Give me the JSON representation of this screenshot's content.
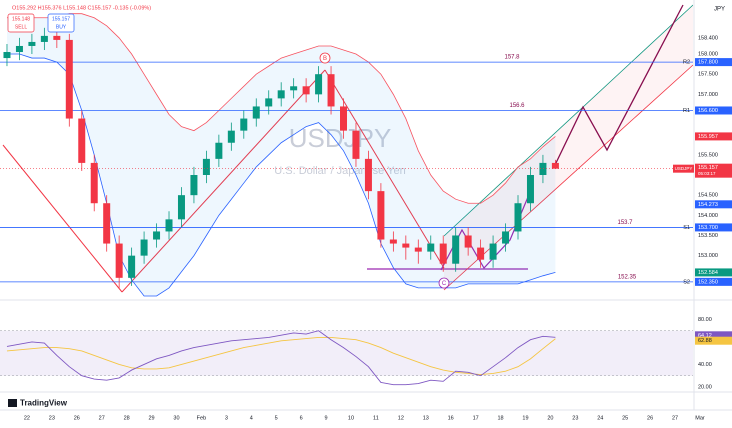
{
  "header": {
    "ohlc": "O155.292 H155.376 L155.148 C155.157 -0.135 (-0.09%)",
    "sell_price": "155.148",
    "sell": "SELL",
    "buy_price": "155.157",
    "buy": "BUY",
    "currency": "JPY"
  },
  "watermark": {
    "symbol": "USDJPY",
    "description": "U.S. Dollar / Japanese Yen"
  },
  "annotations": {
    "b": "B",
    "c": "C"
  },
  "logo": "TradingView",
  "chart_data": [
    {
      "type": "candlestick",
      "up_color": "#089981",
      "down_color": "#f23645",
      "x": [
        -0.8,
        -0.3,
        0.2,
        0.7,
        1.2,
        1.7,
        2.2,
        2.7,
        3.2,
        3.7,
        4.2,
        4.7,
        5.2,
        5.7,
        6.2,
        6.7,
        7.2,
        7.7,
        8.2,
        8.7,
        9.2,
        9.7,
        10.2,
        10.7,
        11.2,
        11.7,
        12.2,
        12.7,
        13.2,
        13.7,
        14.2,
        14.7,
        15.2,
        15.7,
        16.2,
        16.7,
        17.2,
        17.7,
        18.2,
        18.7,
        19.2,
        19.7,
        20.2,
        20.7,
        21.2
      ],
      "open": [
        157.9,
        158.05,
        158.2,
        158.3,
        158.45,
        158.35,
        156.4,
        155.3,
        154.3,
        153.3,
        152.45,
        153.0,
        153.4,
        153.6,
        153.9,
        154.5,
        155.0,
        155.4,
        155.8,
        156.1,
        156.4,
        156.7,
        156.9,
        157.1,
        157.2,
        157.0,
        157.5,
        156.7,
        156.1,
        155.4,
        154.6,
        153.4,
        153.3,
        153.2,
        153.1,
        153.3,
        152.8,
        153.5,
        153.2,
        152.9,
        153.3,
        153.6,
        154.3,
        155.0,
        155.3
      ],
      "high": [
        158.25,
        158.4,
        158.5,
        158.65,
        158.6,
        158.5,
        156.6,
        155.5,
        154.5,
        153.5,
        153.2,
        153.6,
        153.8,
        154.1,
        154.7,
        155.2,
        155.6,
        156.0,
        156.3,
        156.6,
        156.9,
        157.1,
        157.3,
        157.4,
        157.4,
        157.7,
        157.7,
        156.9,
        156.3,
        155.6,
        154.8,
        153.6,
        153.5,
        153.4,
        153.5,
        153.5,
        153.7,
        153.7,
        153.4,
        153.5,
        153.8,
        154.5,
        155.2,
        155.5,
        155.376
      ],
      "low": [
        157.7,
        157.85,
        158.0,
        158.1,
        158.15,
        156.2,
        155.1,
        154.1,
        153.1,
        152.2,
        152.25,
        152.8,
        153.2,
        153.4,
        153.7,
        154.3,
        154.8,
        155.2,
        155.6,
        155.9,
        156.2,
        156.5,
        156.7,
        156.9,
        156.8,
        156.8,
        156.5,
        155.9,
        155.2,
        154.4,
        153.2,
        153.1,
        152.9,
        152.8,
        152.9,
        152.6,
        152.6,
        153.0,
        152.7,
        152.7,
        153.1,
        153.4,
        154.1,
        154.8,
        155.148
      ],
      "close": [
        158.05,
        158.2,
        158.3,
        158.45,
        158.35,
        156.4,
        155.3,
        154.3,
        153.3,
        152.45,
        153.0,
        153.4,
        153.6,
        153.9,
        154.5,
        155.0,
        155.4,
        155.8,
        156.1,
        156.4,
        156.7,
        156.9,
        157.1,
        157.2,
        157.0,
        157.5,
        156.7,
        156.1,
        155.4,
        154.6,
        153.4,
        153.3,
        153.2,
        153.1,
        153.3,
        152.8,
        153.5,
        153.2,
        152.9,
        153.3,
        153.6,
        154.3,
        155.0,
        155.3,
        155.157
      ],
      "bands": {
        "upper_color": "#f7525f",
        "lower_color": "#2962ff",
        "fill": "#2196f3",
        "upper": [
          158.9,
          158.9,
          158.9,
          158.9,
          158.9,
          159.0,
          159.0,
          158.9,
          158.7,
          158.4,
          158.0,
          157.5,
          157.0,
          156.5,
          156.2,
          156.1,
          156.3,
          156.6,
          156.9,
          157.2,
          157.5,
          157.7,
          157.9,
          158.0,
          158.1,
          158.2,
          158.2,
          158.1,
          158.0,
          157.8,
          157.5,
          157.0,
          156.4,
          155.6,
          155.0,
          154.6,
          154.4,
          154.3,
          154.3,
          154.5,
          154.8,
          155.2,
          155.4,
          155.7,
          155.957
        ],
        "lower": [
          158.0,
          158.0,
          157.9,
          157.9,
          157.8,
          157.5,
          156.6,
          155.5,
          154.3,
          153.0,
          152.4,
          152.0,
          152.0,
          152.2,
          152.6,
          153.0,
          153.5,
          154.0,
          154.4,
          154.8,
          155.2,
          155.5,
          155.8,
          156.0,
          156.2,
          156.3,
          156.0,
          155.6,
          155.0,
          154.3,
          153.3,
          152.7,
          152.3,
          152.2,
          152.2,
          152.2,
          152.2,
          152.3,
          152.3,
          152.3,
          152.3,
          152.3,
          152.4,
          152.5,
          152.584
        ]
      },
      "xlim": [
        -1.08,
        26.72
      ],
      "ylim": [
        151.9,
        159.34
      ],
      "xticks": [
        {
          "value": 0,
          "label": "22"
        },
        {
          "value": 1,
          "label": "23"
        },
        {
          "value": 2,
          "label": "26"
        },
        {
          "value": 3,
          "label": "27"
        },
        {
          "value": 4,
          "label": "28"
        },
        {
          "value": 5,
          "label": "29"
        },
        {
          "value": 6,
          "label": "30"
        },
        {
          "value": 7,
          "label": "Feb"
        },
        {
          "value": 8,
          "label": "3"
        },
        {
          "value": 9,
          "label": "4"
        },
        {
          "value": 10,
          "label": "5"
        },
        {
          "value": 11,
          "label": "6"
        },
        {
          "value": 12,
          "label": "9"
        },
        {
          "value": 13,
          "label": "10"
        },
        {
          "value": 14,
          "label": "11"
        },
        {
          "value": 15,
          "label": "12"
        },
        {
          "value": 16,
          "label": "13"
        },
        {
          "value": 17,
          "label": "16"
        },
        {
          "value": 18,
          "label": "17"
        },
        {
          "value": 19,
          "label": "18"
        },
        {
          "value": 20,
          "label": "19"
        },
        {
          "value": 21,
          "label": "20"
        },
        {
          "value": 22,
          "label": "23"
        },
        {
          "value": 23,
          "label": "24"
        },
        {
          "value": 24,
          "label": "25"
        },
        {
          "value": 25,
          "label": "26"
        },
        {
          "value": 26,
          "label": "27"
        },
        {
          "value": 27,
          "label": "Mar"
        }
      ],
      "yticks": [
        {
          "value": 158.4,
          "label": "158.400"
        },
        {
          "value": 158,
          "label": "158.000"
        },
        {
          "value": 157.5,
          "label": "157.500"
        },
        {
          "value": 157,
          "label": "157.000"
        },
        {
          "value": 155.5,
          "label": "155.500"
        },
        {
          "value": 154.5,
          "label": "154.500"
        },
        {
          "value": 154,
          "label": "154.000"
        },
        {
          "value": 153.5,
          "label": "153.500"
        },
        {
          "value": 153,
          "label": "153.000"
        }
      ],
      "levels": [
        {
          "name": "R2",
          "value": 157.8,
          "value_label": "157.800"
        },
        {
          "name": "R1",
          "value": 156.6,
          "value_label": "156.600"
        },
        {
          "name": "S1",
          "value": 153.7,
          "value_label": "153.700"
        },
        {
          "name": "S2",
          "value": 152.35,
          "value_label": "152.350"
        }
      ],
      "level_color": "#2962ff",
      "price_badges": [
        {
          "value": 155.957,
          "label": "155.957",
          "color": "#f23645"
        },
        {
          "value": 154.273,
          "label": "154.273",
          "color": "#2962ff"
        },
        {
          "value": 152.584,
          "label": "152.584",
          "color": "#089981"
        }
      ],
      "current": {
        "name": "USDJPY",
        "value": 155.157,
        "label": "155.157",
        "countdown": "05:03:17",
        "color": "#f23645"
      }
    },
    {
      "type": "line",
      "series": [
        {
          "color": "#7e57c2",
          "values": [
            56,
            58,
            60,
            59,
            48,
            38,
            30,
            27,
            26,
            28,
            35,
            40,
            45,
            48,
            52,
            55,
            57,
            59,
            61,
            62,
            63,
            64,
            66,
            68,
            67,
            70,
            62,
            55,
            47,
            38,
            24,
            22,
            22,
            23,
            26,
            25,
            34,
            33,
            30,
            38,
            46,
            55,
            62,
            65,
            64.12
          ]
        },
        {
          "color": "#f5c542",
          "values": [
            52,
            53,
            54,
            55,
            55,
            54,
            52,
            48,
            44,
            40,
            37,
            36,
            36,
            37,
            40,
            43,
            46,
            49,
            52,
            55,
            57,
            59,
            61,
            62,
            63,
            64,
            64,
            63,
            62,
            59,
            55,
            50,
            46,
            42,
            38,
            35,
            33,
            32,
            31,
            32,
            34,
            38,
            45,
            54,
            62.88
          ]
        }
      ],
      "ylim": [
        15.5,
        97.3
      ],
      "band": [
        30,
        70
      ],
      "yticks": [
        {
          "value": 80,
          "label": "80.00"
        },
        {
          "value": 40,
          "label": "40.00"
        },
        {
          "value": 20,
          "label": "20.00"
        }
      ]
    }
  ]
}
